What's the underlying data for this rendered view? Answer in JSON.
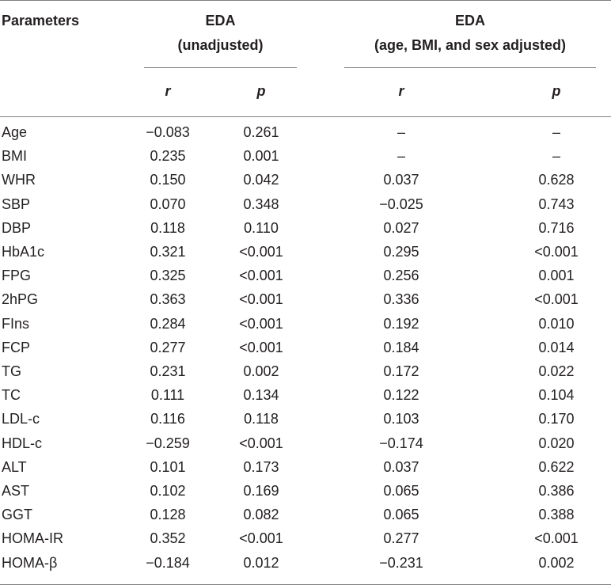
{
  "header": {
    "parameters": "Parameters",
    "group_unadjusted": {
      "line1": "EDA",
      "line2": "(unadjusted)"
    },
    "group_adjusted": {
      "line1": "EDA",
      "line2": "(age, BMI, and sex adjusted)"
    },
    "sub": [
      "r",
      "p",
      "r",
      "p"
    ]
  },
  "rows": [
    [
      "Age",
      "−0.083",
      "0.261",
      "–",
      "–"
    ],
    [
      "BMI",
      "0.235",
      "0.001",
      "–",
      "–"
    ],
    [
      "WHR",
      "0.150",
      "0.042",
      "0.037",
      "0.628"
    ],
    [
      "SBP",
      "0.070",
      "0.348",
      "−0.025",
      "0.743"
    ],
    [
      "DBP",
      "0.118",
      "0.110",
      "0.027",
      "0.716"
    ],
    [
      "HbA1c",
      "0.321",
      "<0.001",
      "0.295",
      "<0.001"
    ],
    [
      "FPG",
      "0.325",
      "<0.001",
      "0.256",
      "0.001"
    ],
    [
      "2hPG",
      "0.363",
      "<0.001",
      "0.336",
      "<0.001"
    ],
    [
      "FIns",
      "0.284",
      "<0.001",
      "0.192",
      "0.010"
    ],
    [
      "FCP",
      "0.277",
      "<0.001",
      "0.184",
      "0.014"
    ],
    [
      "TG",
      "0.231",
      "0.002",
      "0.172",
      "0.022"
    ],
    [
      "TC",
      "0.111",
      "0.134",
      "0.122",
      "0.104"
    ],
    [
      "LDL-c",
      "0.116",
      "0.118",
      "0.103",
      "0.170"
    ],
    [
      "HDL-c",
      "−0.259",
      "<0.001",
      "−0.174",
      "0.020"
    ],
    [
      "ALT",
      "0.101",
      "0.173",
      "0.037",
      "0.622"
    ],
    [
      "AST",
      "0.102",
      "0.169",
      "0.065",
      "0.386"
    ],
    [
      "GGT",
      "0.128",
      "0.082",
      "0.065",
      "0.388"
    ],
    [
      "HOMA-IR",
      "0.352",
      "<0.001",
      "0.277",
      "<0.001"
    ],
    [
      "HOMA-β",
      "−0.184",
      "0.012",
      "−0.231",
      "0.002"
    ]
  ]
}
